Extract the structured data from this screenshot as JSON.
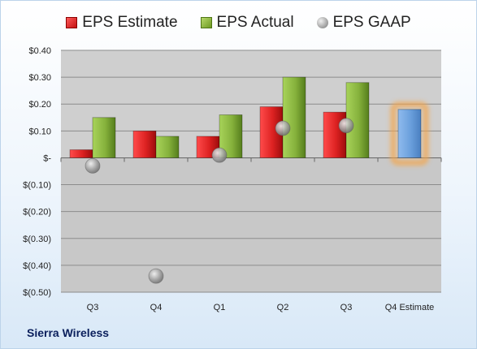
{
  "company": "Sierra Wireless",
  "chart_data": {
    "type": "bar",
    "categories": [
      "Q3",
      "Q4",
      "Q1",
      "Q2",
      "Q3",
      "Q4 Estimate"
    ],
    "series": [
      {
        "name": "EPS Estimate",
        "values": [
          0.03,
          0.1,
          0.08,
          0.19,
          0.17,
          null
        ]
      },
      {
        "name": "EPS Actual",
        "values": [
          0.15,
          0.08,
          0.16,
          0.3,
          0.28,
          null
        ]
      },
      {
        "name": "EPS GAAP",
        "type": "scatter",
        "values": [
          -0.03,
          -0.44,
          0.01,
          0.11,
          0.12,
          null
        ]
      }
    ],
    "forecast": {
      "category": "Q4 Estimate",
      "value": 0.18
    },
    "ylim": [
      -0.5,
      0.4
    ],
    "yticks": [
      0.4,
      0.3,
      0.2,
      0.1,
      0,
      -0.1,
      -0.2,
      -0.3,
      -0.4,
      -0.5
    ],
    "ytick_labels": [
      "$0.40",
      "$0.30",
      "$0.20",
      "$0.10",
      "$-",
      "$(0.10)",
      "$(0.20)",
      "$(0.30)",
      "$(0.40)",
      "$(0.50)"
    ],
    "grid": true,
    "legend": "top-center",
    "colors": {
      "estimate": "#d21f1f",
      "actual": "#7ea832",
      "gaap": "#9a9a9a",
      "forecast": "#6a9fdc",
      "forecast_glow": "#f5a54a"
    }
  }
}
